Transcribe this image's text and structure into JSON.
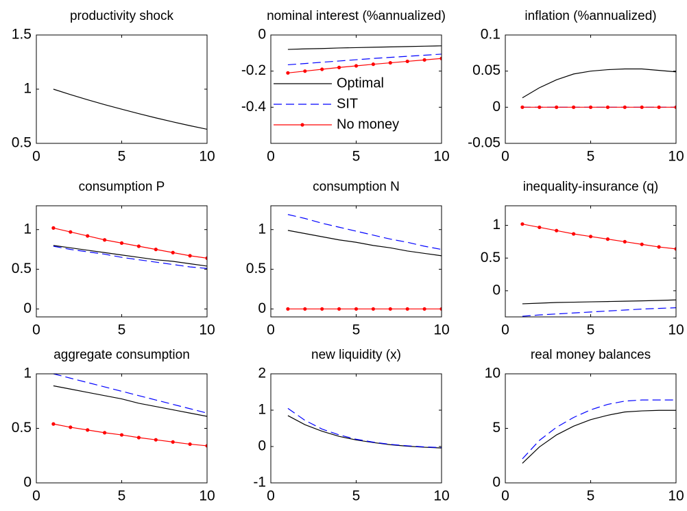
{
  "chart_data": [
    {
      "type": "line",
      "title": "productivity shock",
      "x": [
        1,
        2,
        3,
        4,
        5,
        6,
        7,
        8,
        9,
        10
      ],
      "xlim": [
        0,
        10
      ],
      "xticks": [
        0,
        5,
        10
      ],
      "ylim": [
        0.5,
        1.5
      ],
      "yticks": [
        0.5,
        1,
        1.5
      ],
      "series": [
        {
          "color": "#000000",
          "line_style": "solid",
          "values": [
            1,
            0.95,
            0.9025,
            0.857,
            0.815,
            0.774,
            0.735,
            0.698,
            0.663,
            0.63
          ]
        }
      ]
    },
    {
      "type": "line",
      "title": "nominal interest (%annualized)",
      "x": [
        1,
        2,
        3,
        4,
        5,
        6,
        7,
        8,
        9,
        10
      ],
      "xlim": [
        0,
        10
      ],
      "xticks": [
        0,
        5,
        10
      ],
      "ylim": [
        -0.6,
        0
      ],
      "yticks": [
        -0.4,
        -0.2,
        0
      ],
      "legend": "lower left",
      "series": [
        {
          "name": "Optimal",
          "color": "#000000",
          "line_style": "solid",
          "values": [
            -0.08,
            -0.077,
            -0.075,
            -0.072,
            -0.07,
            -0.068,
            -0.066,
            -0.064,
            -0.062,
            -0.06
          ]
        },
        {
          "name": "SIT",
          "color": "#0000ff",
          "line_style": "dashed",
          "values": [
            -0.165,
            -0.158,
            -0.151,
            -0.144,
            -0.137,
            -0.13,
            -0.124,
            -0.118,
            -0.112,
            -0.106
          ]
        },
        {
          "name": "No money",
          "color": "#ff0000",
          "line_style": "solid",
          "marker": "o",
          "values": [
            -0.21,
            -0.2,
            -0.19,
            -0.18,
            -0.171,
            -0.162,
            -0.154,
            -0.146,
            -0.138,
            -0.13
          ]
        }
      ]
    },
    {
      "type": "line",
      "title": "inflation (%annualized)",
      "x": [
        1,
        2,
        3,
        4,
        5,
        6,
        7,
        8,
        9,
        10
      ],
      "xlim": [
        0,
        10
      ],
      "xticks": [
        0,
        5,
        10
      ],
      "ylim": [
        -0.05,
        0.1
      ],
      "yticks": [
        -0.05,
        0,
        0.05,
        0.1
      ],
      "series": [
        {
          "color": "#000000",
          "line_style": "solid",
          "values": [
            0.013,
            0.027,
            0.038,
            0.046,
            0.05,
            0.052,
            0.053,
            0.053,
            0.051,
            0.049
          ]
        },
        {
          "color": "#0000ff",
          "line_style": "dashed",
          "values": [
            0,
            0,
            0,
            0,
            0,
            0,
            0,
            0,
            0,
            0
          ]
        },
        {
          "color": "#ff0000",
          "line_style": "solid",
          "marker": "o",
          "values": [
            0,
            0,
            0,
            0,
            0,
            0,
            0,
            0,
            0,
            0
          ]
        }
      ]
    },
    {
      "type": "line",
      "title": "consumption P",
      "x": [
        1,
        2,
        3,
        4,
        5,
        6,
        7,
        8,
        9,
        10
      ],
      "xlim": [
        0,
        10
      ],
      "xticks": [
        0,
        5,
        10
      ],
      "ylim": [
        -0.1,
        1.3
      ],
      "yticks": [
        0,
        0.5,
        1
      ],
      "series": [
        {
          "color": "#000000",
          "line_style": "solid",
          "values": [
            0.8,
            0.77,
            0.74,
            0.71,
            0.68,
            0.65,
            0.62,
            0.6,
            0.57,
            0.54
          ]
        },
        {
          "color": "#0000ff",
          "line_style": "dashed",
          "values": [
            0.79,
            0.75,
            0.72,
            0.69,
            0.65,
            0.62,
            0.59,
            0.56,
            0.53,
            0.51
          ]
        },
        {
          "color": "#ff0000",
          "line_style": "solid",
          "marker": "o",
          "values": [
            1.02,
            0.97,
            0.92,
            0.87,
            0.83,
            0.79,
            0.75,
            0.71,
            0.67,
            0.64
          ]
        }
      ]
    },
    {
      "type": "line",
      "title": "consumption N",
      "x": [
        1,
        2,
        3,
        4,
        5,
        6,
        7,
        8,
        9,
        10
      ],
      "xlim": [
        0,
        10
      ],
      "xticks": [
        0,
        5,
        10
      ],
      "ylim": [
        -0.1,
        1.3
      ],
      "yticks": [
        0,
        0.5,
        1
      ],
      "series": [
        {
          "color": "#000000",
          "line_style": "solid",
          "values": [
            0.99,
            0.95,
            0.91,
            0.87,
            0.84,
            0.8,
            0.77,
            0.73,
            0.7,
            0.67
          ]
        },
        {
          "color": "#0000ff",
          "line_style": "dashed",
          "values": [
            1.19,
            1.14,
            1.08,
            1.03,
            0.98,
            0.93,
            0.88,
            0.84,
            0.79,
            0.75
          ]
        },
        {
          "color": "#ff0000",
          "line_style": "solid",
          "marker": "o",
          "values": [
            0,
            0,
            0,
            0,
            0,
            0,
            0,
            0,
            0,
            0
          ]
        }
      ]
    },
    {
      "type": "line",
      "title": "inequality-insurance (q)",
      "x": [
        1,
        2,
        3,
        4,
        5,
        6,
        7,
        8,
        9,
        10
      ],
      "xlim": [
        0,
        10
      ],
      "xticks": [
        0,
        5,
        10
      ],
      "ylim": [
        -0.4,
        1.3
      ],
      "yticks": [
        0,
        0.5,
        1
      ],
      "series": [
        {
          "color": "#000000",
          "line_style": "solid",
          "values": [
            -0.2,
            -0.19,
            -0.18,
            -0.175,
            -0.17,
            -0.165,
            -0.16,
            -0.155,
            -0.148,
            -0.14
          ]
        },
        {
          "color": "#0000ff",
          "line_style": "dashed",
          "values": [
            -0.39,
            -0.37,
            -0.355,
            -0.34,
            -0.325,
            -0.31,
            -0.295,
            -0.28,
            -0.27,
            -0.26
          ]
        },
        {
          "color": "#ff0000",
          "line_style": "solid",
          "marker": "o",
          "values": [
            1.02,
            0.97,
            0.92,
            0.87,
            0.83,
            0.79,
            0.75,
            0.71,
            0.67,
            0.64
          ]
        }
      ]
    },
    {
      "type": "line",
      "title": "aggregate consumption",
      "x": [
        1,
        2,
        3,
        4,
        5,
        6,
        7,
        8,
        9,
        10
      ],
      "xlim": [
        0,
        10
      ],
      "xticks": [
        0,
        5,
        10
      ],
      "ylim": [
        0,
        1
      ],
      "yticks": [
        0,
        0.5,
        1
      ],
      "series": [
        {
          "color": "#000000",
          "line_style": "solid",
          "values": [
            0.89,
            0.86,
            0.83,
            0.8,
            0.77,
            0.73,
            0.7,
            0.67,
            0.64,
            0.61
          ]
        },
        {
          "color": "#0000ff",
          "line_style": "dashed",
          "values": [
            1,
            0.96,
            0.92,
            0.88,
            0.84,
            0.8,
            0.76,
            0.72,
            0.68,
            0.64
          ]
        },
        {
          "color": "#ff0000",
          "line_style": "solid",
          "marker": "o",
          "values": [
            0.54,
            0.51,
            0.485,
            0.46,
            0.44,
            0.415,
            0.395,
            0.375,
            0.355,
            0.34
          ]
        }
      ]
    },
    {
      "type": "line",
      "title": "new liquidity (x)",
      "x": [
        1,
        2,
        3,
        4,
        5,
        6,
        7,
        8,
        9,
        10
      ],
      "xlim": [
        0,
        10
      ],
      "xticks": [
        0,
        5,
        10
      ],
      "ylim": [
        -1,
        2
      ],
      "yticks": [
        -1,
        0,
        1,
        2
      ],
      "series": [
        {
          "color": "#000000",
          "line_style": "solid",
          "values": [
            0.85,
            0.6,
            0.42,
            0.28,
            0.18,
            0.11,
            0.05,
            0.01,
            -0.02,
            -0.04
          ]
        },
        {
          "color": "#0000ff",
          "line_style": "dashed",
          "values": [
            1.05,
            0.72,
            0.48,
            0.32,
            0.2,
            0.12,
            0.06,
            0.02,
            -0.01,
            -0.03
          ]
        }
      ]
    },
    {
      "type": "line",
      "title": "real money balances",
      "x": [
        1,
        2,
        3,
        4,
        5,
        6,
        7,
        8,
        9,
        10
      ],
      "xlim": [
        0,
        10
      ],
      "xticks": [
        0,
        5,
        10
      ],
      "ylim": [
        0,
        10
      ],
      "yticks": [
        0,
        5,
        10
      ],
      "series": [
        {
          "color": "#000000",
          "line_style": "solid",
          "values": [
            1.8,
            3.3,
            4.4,
            5.2,
            5.8,
            6.2,
            6.5,
            6.6,
            6.65,
            6.65
          ]
        },
        {
          "color": "#0000ff",
          "line_style": "dashed",
          "values": [
            2.2,
            3.9,
            5.1,
            6,
            6.7,
            7.2,
            7.5,
            7.6,
            7.6,
            7.6
          ]
        }
      ]
    }
  ]
}
